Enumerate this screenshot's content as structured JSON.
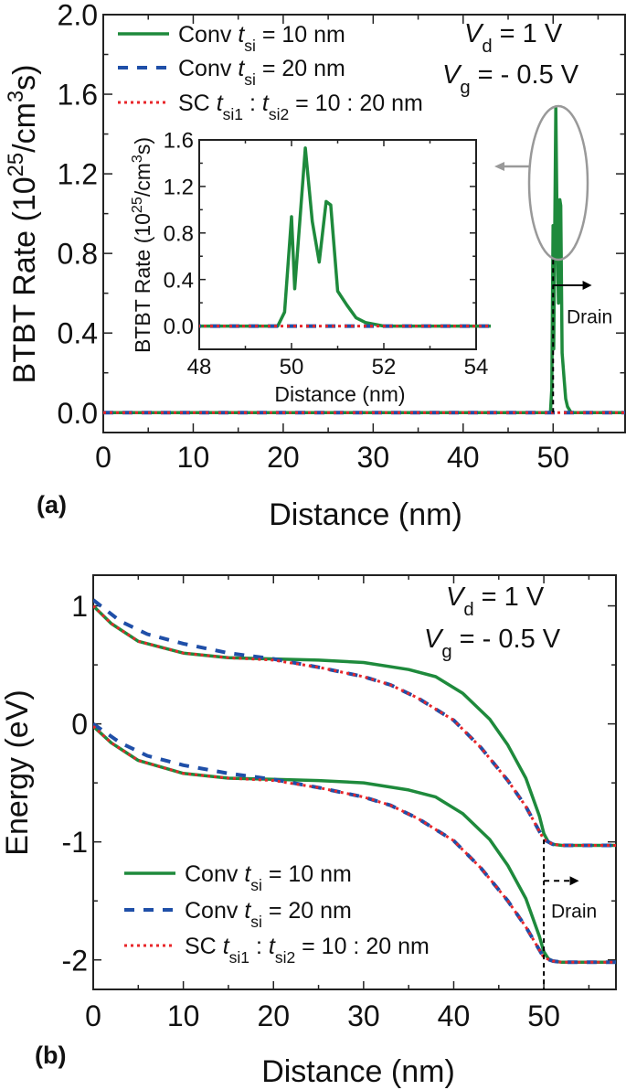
{
  "colors": {
    "conv10": "#1e8a3c",
    "conv20": "#1f4fa8",
    "sc": "#e8262a",
    "ellipse": "#999999",
    "axis": "#222222"
  },
  "chart_data": [
    {
      "id": "a",
      "type": "line",
      "panel_label": "(a)",
      "xlabel": "Distance (nm)",
      "ylabel": [
        {
          "t": "BTBT Rate (10"
        },
        {
          "t": "25",
          "s": "sup"
        },
        {
          "t": "/cm"
        },
        {
          "t": "3",
          "s": "sup"
        },
        {
          "t": "s)"
        }
      ],
      "xlim": [
        0,
        58
      ],
      "ylim": [
        -0.1,
        2.0
      ],
      "xticks": [
        0,
        10,
        20,
        30,
        40,
        50
      ],
      "xminor": 5,
      "yticks": [
        0.0,
        0.4,
        0.8,
        1.2,
        1.6,
        2.0
      ],
      "yminor": 0.2,
      "ytick_decimals": 1,
      "annotations": [
        [
          {
            "t": "V",
            "s": "i"
          },
          {
            "t": "d",
            "s": "sub"
          },
          {
            "t": " = 1 V"
          }
        ],
        [
          {
            "t": "V",
            "s": "i"
          },
          {
            "t": "g",
            "s": "sub"
          },
          {
            "t": " = - 0.5 V"
          }
        ]
      ],
      "drain_label": "Drain",
      "legend": [
        {
          "key": "conv10",
          "label": [
            {
              "t": "Conv "
            },
            {
              "t": "t",
              "s": "i"
            },
            {
              "t": "si",
              "s": "sub"
            },
            {
              "t": " =  10 nm"
            }
          ]
        },
        {
          "key": "conv20",
          "label": [
            {
              "t": "Conv "
            },
            {
              "t": "t",
              "s": "i"
            },
            {
              "t": "si",
              "s": "sub"
            },
            {
              "t": " =  20 nm"
            }
          ]
        },
        {
          "key": "sc",
          "label": [
            {
              "t": "SC "
            },
            {
              "t": "t",
              "s": "i"
            },
            {
              "t": "si1",
              "s": "sub"
            },
            {
              "t": " : "
            },
            {
              "t": "t",
              "s": "i"
            },
            {
              "t": "si2",
              "s": "sub"
            },
            {
              "t": " =  10 : 20 nm"
            }
          ]
        }
      ],
      "series": [
        {
          "key": "conv10",
          "name": "Conv tsi = 10 nm",
          "x": [
            0,
            49.7,
            49.85,
            50,
            50.07,
            50.3,
            50.45,
            50.6,
            50.75,
            50.85,
            51,
            51.2,
            51.4,
            51.6,
            52,
            58
          ],
          "y": [
            0,
            0,
            0.12,
            0.94,
            0.32,
            1.53,
            0.9,
            0.55,
            1.07,
            1.04,
            0.3,
            0.18,
            0.07,
            0.03,
            0,
            0
          ]
        },
        {
          "key": "conv20",
          "name": "Conv tsi = 20 nm",
          "x": [
            0,
            58
          ],
          "y": [
            0,
            0
          ]
        },
        {
          "key": "sc",
          "name": "SC tsi1 : tsi2 = 10 : 20 nm",
          "x": [
            0,
            58
          ],
          "y": [
            0,
            0
          ]
        }
      ],
      "inset": {
        "xlabel": "Distance (nm)",
        "ylabel": [
          {
            "t": "BTBT Rate (10"
          },
          {
            "t": "25",
            "s": "sup"
          },
          {
            "t": "/cm"
          },
          {
            "t": "3",
            "s": "sup"
          },
          {
            "t": "s)"
          }
        ],
        "xlim": [
          48,
          54
        ],
        "ylim": [
          -0.2,
          1.6
        ],
        "xticks": [
          48,
          50,
          52,
          54
        ],
        "xminor": 1,
        "yticks": [
          0.0,
          0.4,
          0.8,
          1.2,
          1.6
        ],
        "yminor": 0.2,
        "ytick_decimals": 1
      }
    },
    {
      "id": "b",
      "type": "line",
      "panel_label": "(b)",
      "xlabel": "Distance (nm)",
      "ylabel": [
        {
          "t": "Energy (eV)"
        }
      ],
      "xlim": [
        0,
        58
      ],
      "ylim": [
        -2.25,
        1.26
      ],
      "xticks": [
        0,
        10,
        20,
        30,
        40,
        50
      ],
      "xminor": 5,
      "yticks": [
        -2,
        -1,
        0,
        1
      ],
      "yminor": 0.5,
      "ytick_decimals": 0,
      "annotations": [
        [
          {
            "t": "V",
            "s": "i"
          },
          {
            "t": "d",
            "s": "sub"
          },
          {
            "t": " = 1 V"
          }
        ],
        [
          {
            "t": "V",
            "s": "i"
          },
          {
            "t": "g",
            "s": "sub"
          },
          {
            "t": " = - 0.5 V"
          }
        ]
      ],
      "drain_label": "Drain",
      "legend": [
        {
          "key": "conv10",
          "label": [
            {
              "t": "Conv "
            },
            {
              "t": "t",
              "s": "i"
            },
            {
              "t": "si",
              "s": "sub"
            },
            {
              "t": " =  10 nm"
            }
          ]
        },
        {
          "key": "conv20",
          "label": [
            {
              "t": "Conv "
            },
            {
              "t": "t",
              "s": "i"
            },
            {
              "t": "si",
              "s": "sub"
            },
            {
              "t": " =  20 nm"
            }
          ]
        },
        {
          "key": "sc",
          "label": [
            {
              "t": "SC "
            },
            {
              "t": "t",
              "s": "i"
            },
            {
              "t": "si1",
              "s": "sub"
            },
            {
              "t": " : "
            },
            {
              "t": "t",
              "s": "i"
            },
            {
              "t": "si2",
              "s": "sub"
            },
            {
              "t": " =  10 : 20 nm"
            }
          ]
        }
      ],
      "series": [
        {
          "key": "conv10",
          "name": "Conv tsi = 10 nm (Ec)",
          "x": [
            0,
            2,
            5,
            10,
            15,
            20,
            25,
            30,
            35,
            38,
            41,
            44,
            46,
            48,
            49.5,
            50,
            50.5,
            51,
            52,
            58
          ],
          "y": [
            1,
            0.85,
            0.7,
            0.6,
            0.56,
            0.55,
            0.54,
            0.52,
            0.46,
            0.4,
            0.26,
            0.04,
            -0.18,
            -0.46,
            -0.78,
            -0.93,
            -1.0,
            -1.02,
            -1.03,
            -1.03
          ]
        },
        {
          "key": "conv10",
          "name": "Conv tsi = 10 nm (Ev)",
          "x": [
            0,
            2,
            5,
            10,
            15,
            20,
            25,
            30,
            35,
            38,
            41,
            44,
            46,
            48,
            49.5,
            50,
            50.5,
            51,
            52,
            58
          ],
          "y": [
            -0.02,
            -0.16,
            -0.31,
            -0.42,
            -0.46,
            -0.47,
            -0.48,
            -0.5,
            -0.56,
            -0.62,
            -0.76,
            -0.98,
            -1.2,
            -1.48,
            -1.8,
            -1.93,
            -1.99,
            -2.01,
            -2.02,
            -2.02
          ]
        },
        {
          "key": "conv20",
          "name": "Conv tsi = 20 nm (Ec)",
          "x": [
            0,
            3,
            6,
            10,
            15,
            20,
            25,
            30,
            33,
            36,
            40,
            43,
            46,
            48,
            50,
            51,
            52,
            58
          ],
          "y": [
            1.05,
            0.87,
            0.76,
            0.68,
            0.6,
            0.55,
            0.48,
            0.4,
            0.33,
            0.22,
            0.03,
            -0.2,
            -0.48,
            -0.7,
            -0.98,
            -1.02,
            -1.03,
            -1.03
          ]
        },
        {
          "key": "conv20",
          "name": "Conv tsi = 20 nm (Ev)",
          "x": [
            0,
            3,
            6,
            10,
            15,
            20,
            25,
            30,
            33,
            36,
            40,
            43,
            46,
            48,
            50,
            51,
            52,
            58
          ],
          "y": [
            0.0,
            -0.16,
            -0.27,
            -0.35,
            -0.42,
            -0.47,
            -0.54,
            -0.62,
            -0.69,
            -0.8,
            -0.99,
            -1.22,
            -1.5,
            -1.72,
            -1.98,
            -2.01,
            -2.02,
            -2.02
          ]
        },
        {
          "key": "sc",
          "name": "SC tsi1 : tsi2 = 10 : 20 nm (Ec)",
          "x": [
            0,
            2,
            5,
            10,
            15,
            20,
            25,
            30,
            33,
            36,
            40,
            43,
            46,
            48,
            50,
            51,
            52,
            58
          ],
          "y": [
            1,
            0.85,
            0.7,
            0.6,
            0.56,
            0.54,
            0.48,
            0.4,
            0.33,
            0.22,
            0.03,
            -0.2,
            -0.48,
            -0.7,
            -0.98,
            -1.02,
            -1.03,
            -1.03
          ]
        },
        {
          "key": "sc",
          "name": "SC tsi1 : tsi2 = 10 : 20 nm (Ev)",
          "x": [
            0,
            2,
            5,
            10,
            15,
            20,
            25,
            30,
            33,
            36,
            40,
            43,
            46,
            48,
            50,
            51,
            52,
            58
          ],
          "y": [
            -0.02,
            -0.16,
            -0.31,
            -0.42,
            -0.46,
            -0.48,
            -0.54,
            -0.62,
            -0.69,
            -0.8,
            -0.99,
            -1.22,
            -1.5,
            -1.72,
            -1.98,
            -2.01,
            -2.02,
            -2.02
          ]
        }
      ]
    }
  ]
}
